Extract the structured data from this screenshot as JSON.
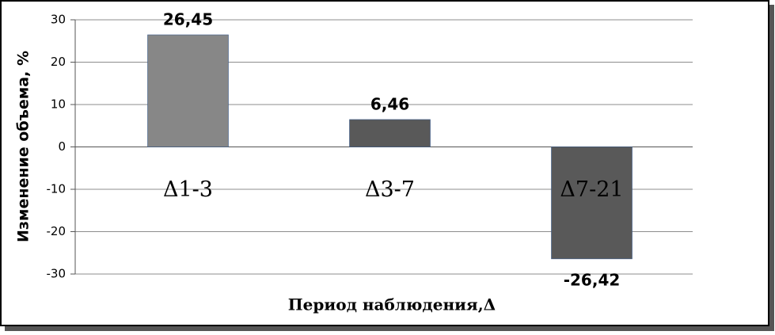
{
  "chart_data": {
    "type": "bar",
    "x_label": "Период наблюдения,Δ",
    "y_label": "Изменение объема, %",
    "categories": [
      "Δ1-3",
      "Δ3-7",
      "Δ7-21"
    ],
    "values": [
      26.45,
      6.46,
      -26.42
    ],
    "value_labels": [
      "26,45",
      "6,46",
      "-26,42"
    ],
    "colors": [
      "#878787",
      "#595959",
      "#595959"
    ],
    "ylim": [
      -30,
      30
    ],
    "yticks": [
      -30,
      -20,
      -10,
      0,
      10,
      20,
      30
    ],
    "grid": true
  }
}
